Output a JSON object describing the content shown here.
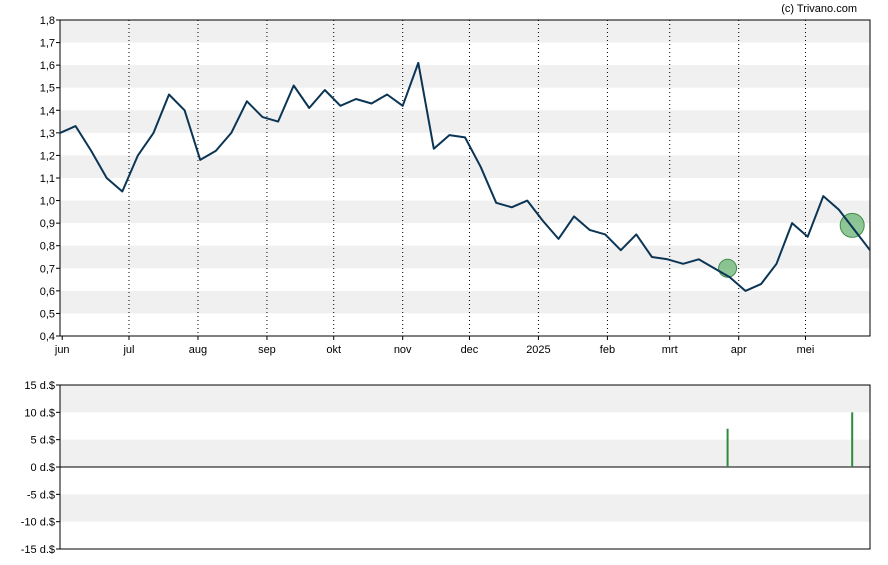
{
  "credit": "(c) Trivano.com",
  "colors": {
    "price_line": "#0b3555",
    "band_fill": "#f0f0f0",
    "vgrid": "#000000",
    "marker_fill": "#5fae6a",
    "bar": "#2e8b3a"
  },
  "chart_data": [
    {
      "type": "line",
      "x": [
        "2024-05-31",
        "2024-06-07",
        "2024-06-14",
        "2024-06-21",
        "2024-06-28",
        "2024-07-05",
        "2024-07-12",
        "2024-07-19",
        "2024-07-26",
        "2024-08-02",
        "2024-08-09",
        "2024-08-16",
        "2024-08-23",
        "2024-08-30",
        "2024-09-06",
        "2024-09-13",
        "2024-09-20",
        "2024-09-27",
        "2024-10-04",
        "2024-10-11",
        "2024-10-18",
        "2024-10-25",
        "2024-11-01",
        "2024-11-08",
        "2024-11-15",
        "2024-11-22",
        "2024-11-29",
        "2024-12-06",
        "2024-12-13",
        "2024-12-20",
        "2024-12-27",
        "2025-01-03",
        "2025-01-10",
        "2025-01-17",
        "2025-01-24",
        "2025-01-31",
        "2025-02-07",
        "2025-02-14",
        "2025-02-21",
        "2025-02-28",
        "2025-03-07",
        "2025-03-14",
        "2025-03-21",
        "2025-03-28",
        "2025-04-04",
        "2025-04-11",
        "2025-04-18",
        "2025-04-25",
        "2025-05-02",
        "2025-05-09",
        "2025-05-16",
        "2025-05-23",
        "2025-05-30"
      ],
      "series": [
        {
          "values": [
            1.3,
            1.33,
            1.22,
            1.1,
            1.04,
            1.2,
            1.3,
            1.47,
            1.4,
            1.18,
            1.22,
            1.3,
            1.44,
            1.37,
            1.35,
            1.51,
            1.41,
            1.49,
            1.42,
            1.45,
            1.43,
            1.47,
            1.42,
            1.61,
            1.23,
            1.29,
            1.28,
            1.15,
            0.99,
            0.97,
            1.0,
            0.91,
            0.83,
            0.93,
            0.87,
            0.85,
            0.78,
            0.85,
            0.75,
            0.74,
            0.72,
            0.74,
            0.7,
            0.66,
            0.6,
            0.63,
            0.72,
            0.9,
            0.84,
            1.02,
            0.96,
            0.87,
            0.78
          ]
        }
      ],
      "markers": [
        {
          "x": "2025-03-27",
          "y": 0.7
        },
        {
          "x": "2025-05-22",
          "y": 0.89
        }
      ],
      "x_tick_labels": [
        "jun",
        "jul",
        "aug",
        "sep",
        "okt",
        "nov",
        "dec",
        "2025",
        "feb",
        "mrt",
        "apr",
        "mei"
      ],
      "ylim": [
        0.4,
        1.8
      ],
      "y_tick_labels": [
        "0,4",
        "0,5",
        "0,6",
        "0,7",
        "0,8",
        "0,9",
        "1,0",
        "1,1",
        "1,2",
        "1,3",
        "1,4",
        "1,5",
        "1,6",
        "1,7",
        "1,8"
      ],
      "grid": true
    },
    {
      "type": "bar",
      "x": [
        "2025-03-27",
        "2025-05-22"
      ],
      "values": [
        7,
        10
      ],
      "ylim": [
        -15,
        15
      ],
      "y_tick_labels": [
        "15 d.$",
        "10 d.$",
        "5 d.$",
        "0 d.$",
        "-5 d.$",
        "-10 d.$",
        "-15 d.$"
      ],
      "grid": true
    }
  ]
}
